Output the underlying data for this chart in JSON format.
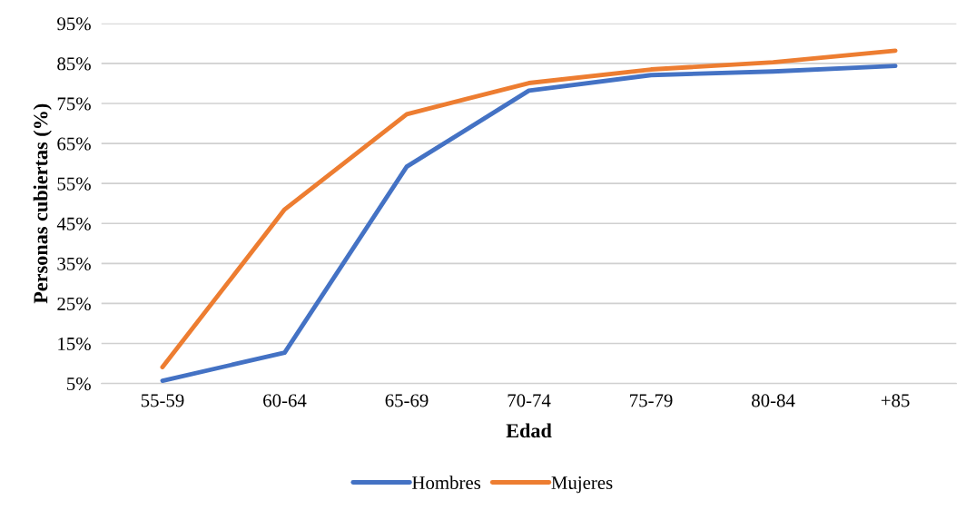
{
  "chart_data": {
    "type": "line",
    "xlabel": "Edad",
    "ylabel": "Personas cubiertas (%)",
    "categories": [
      "55-59",
      "60-64",
      "65-69",
      "70-74",
      "75-79",
      "80-84",
      "+85"
    ],
    "series": [
      {
        "name": "Hombres",
        "color": "#4472c4",
        "values": [
          5.7,
          12.7,
          59.2,
          78.2,
          82.1,
          83.0,
          84.4
        ]
      },
      {
        "name": "Mujeres",
        "color": "#ed7d31",
        "values": [
          9.1,
          48.5,
          72.3,
          80.1,
          83.5,
          85.3,
          88.2
        ]
      }
    ],
    "ylim": [
      5,
      95
    ],
    "yticks": [
      {
        "value": 5,
        "label": "5%"
      },
      {
        "value": 15,
        "label": "15%"
      },
      {
        "value": 25,
        "label": "25%"
      },
      {
        "value": 35,
        "label": "35%"
      },
      {
        "value": 45,
        "label": "45%"
      },
      {
        "value": 55,
        "label": "55%"
      },
      {
        "value": 65,
        "label": "65%"
      },
      {
        "value": 75,
        "label": "75%"
      },
      {
        "value": 85,
        "label": "85%"
      },
      {
        "value": 95,
        "label": "95%"
      }
    ],
    "grid": "y",
    "legend": "bottom",
    "marker": "none",
    "line_style": "solid"
  }
}
